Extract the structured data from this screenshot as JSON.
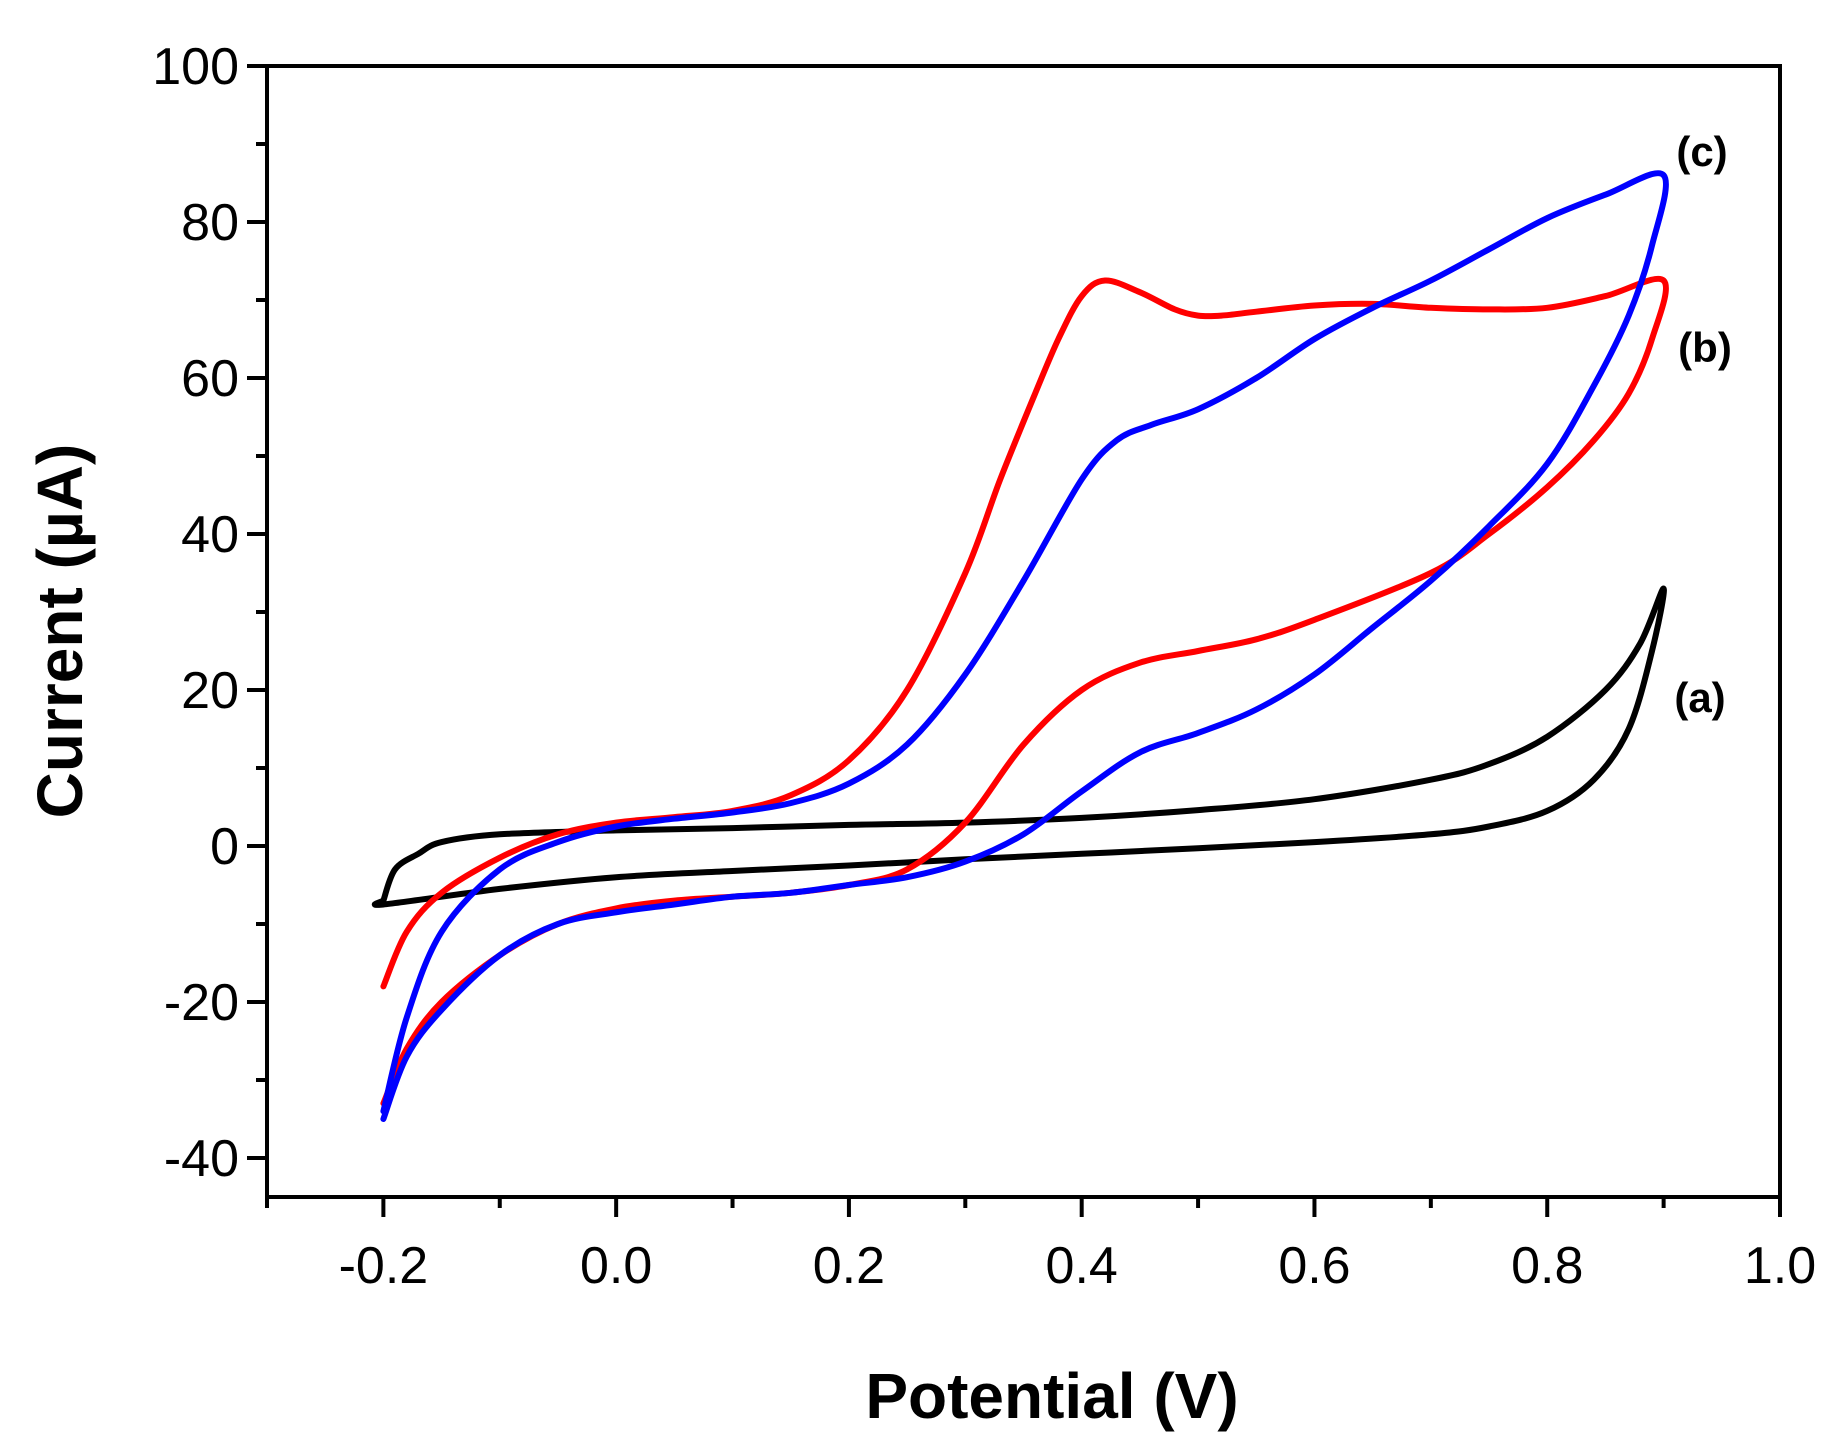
{
  "chart_data": {
    "type": "line",
    "title": "",
    "xlabel": "Potential (V)",
    "ylabel": "Current (µA)",
    "xlim": [
      -0.3,
      1.0
    ],
    "ylim": [
      -45,
      100
    ],
    "xticks": [
      -0.2,
      0.0,
      0.2,
      0.4,
      0.6,
      0.8,
      1.0
    ],
    "xtick_labels": [
      "-0.2",
      "0.0",
      "0.2",
      "0.4",
      "0.6",
      "0.8",
      "1.0"
    ],
    "yticks": [
      -40,
      -20,
      0,
      20,
      40,
      60,
      80,
      100
    ],
    "ytick_labels": [
      "-40",
      "-20",
      "0",
      "20",
      "40",
      "60",
      "80",
      "100"
    ],
    "grid": false,
    "legend": "none",
    "series": [
      {
        "name": "(a)",
        "color": "#000000",
        "x": [
          -0.2,
          -0.19,
          -0.17,
          -0.15,
          -0.1,
          0.0,
          0.1,
          0.2,
          0.3,
          0.4,
          0.5,
          0.6,
          0.7,
          0.75,
          0.8,
          0.85,
          0.88,
          0.9,
          0.89,
          0.87,
          0.84,
          0.8,
          0.75,
          0.7,
          0.6,
          0.5,
          0.4,
          0.3,
          0.2,
          0.1,
          0.0,
          -0.1,
          -0.2,
          -0.2
        ],
        "y": [
          -7,
          -3,
          -1,
          0.5,
          1.5,
          2,
          2.3,
          2.7,
          3,
          3.6,
          4.6,
          6,
          8.5,
          10.5,
          14,
          20,
          26,
          33,
          25,
          15,
          8.5,
          4.5,
          2.5,
          1.5,
          0.5,
          -0.3,
          -1,
          -1.7,
          -2.5,
          -3.2,
          -4,
          -5.5,
          -7.5,
          -7
        ]
      },
      {
        "name": "(b)",
        "color": "#ff0000",
        "x": [
          -0.2,
          -0.18,
          -0.15,
          -0.1,
          -0.05,
          0.0,
          0.05,
          0.1,
          0.15,
          0.2,
          0.25,
          0.3,
          0.33,
          0.36,
          0.38,
          0.4,
          0.42,
          0.45,
          0.48,
          0.5,
          0.52,
          0.55,
          0.6,
          0.65,
          0.7,
          0.75,
          0.8,
          0.85,
          0.9,
          0.89,
          0.87,
          0.84,
          0.8,
          0.75,
          0.7,
          0.6,
          0.55,
          0.5,
          0.45,
          0.4,
          0.35,
          0.3,
          0.25,
          0.2,
          0.15,
          0.1,
          0.05,
          0.0,
          -0.05,
          -0.1,
          -0.15,
          -0.18,
          -0.2
        ],
        "y": [
          -18,
          -11,
          -6,
          -1.5,
          1.5,
          3,
          3.7,
          4.5,
          6.5,
          11,
          20,
          35,
          47,
          58,
          65,
          70.5,
          72.5,
          71,
          68.8,
          68,
          68,
          68.5,
          69.3,
          69.5,
          69,
          68.8,
          69,
          70.5,
          72.5,
          65,
          58,
          52,
          46,
          40,
          35,
          29,
          26.5,
          25,
          23.5,
          20,
          13,
          3,
          -3,
          -5,
          -6,
          -6.5,
          -7,
          -8,
          -10,
          -14,
          -20,
          -26,
          -33
        ]
      },
      {
        "name": "(c)",
        "color": "#0000ff",
        "x": [
          -0.2,
          -0.18,
          -0.15,
          -0.1,
          -0.05,
          0.0,
          0.05,
          0.1,
          0.15,
          0.2,
          0.25,
          0.3,
          0.35,
          0.4,
          0.43,
          0.46,
          0.5,
          0.55,
          0.6,
          0.65,
          0.7,
          0.75,
          0.8,
          0.85,
          0.9,
          0.89,
          0.87,
          0.84,
          0.8,
          0.75,
          0.7,
          0.65,
          0.6,
          0.55,
          0.5,
          0.45,
          0.4,
          0.35,
          0.3,
          0.25,
          0.2,
          0.15,
          0.1,
          0.05,
          0.0,
          -0.05,
          -0.1,
          -0.15,
          -0.18,
          -0.2
        ],
        "y": [
          -34,
          -22,
          -11,
          -3,
          0.5,
          2.5,
          3.5,
          4.3,
          5.5,
          8,
          13,
          22,
          34,
          47,
          52,
          54,
          56,
          60,
          65,
          69,
          72.5,
          76.5,
          80.5,
          83.5,
          86,
          77,
          68,
          59,
          49,
          41,
          34,
          28,
          22,
          17.5,
          14.5,
          12,
          7,
          1.5,
          -2,
          -4,
          -5,
          -6,
          -6.5,
          -7.5,
          -8.5,
          -10,
          -14,
          -21,
          -27,
          -35
        ]
      }
    ],
    "annotations": [
      "(a)",
      "(b)",
      "(c)"
    ]
  }
}
